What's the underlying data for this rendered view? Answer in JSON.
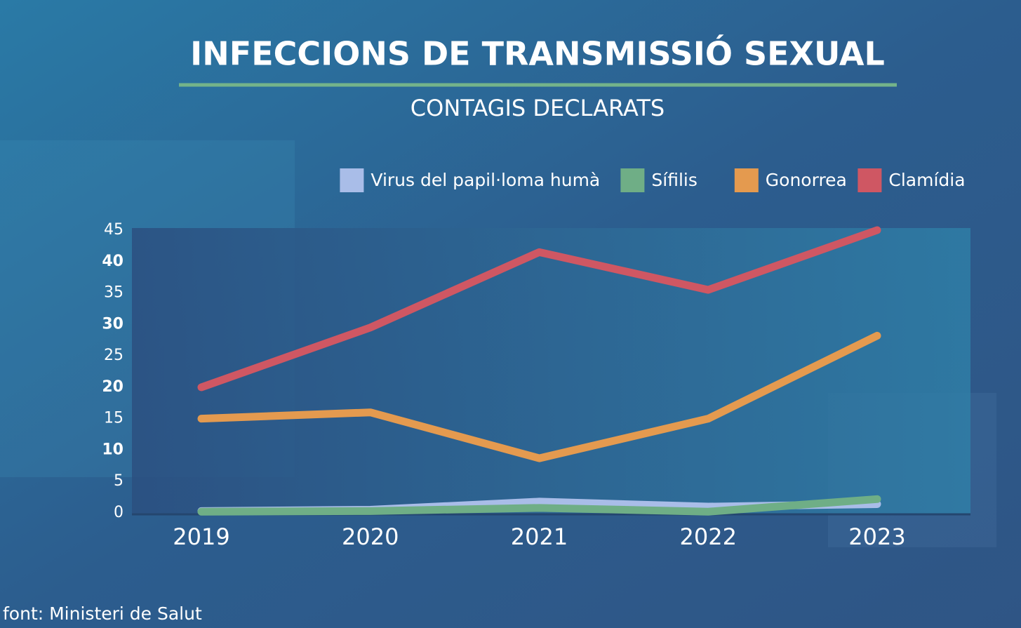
{
  "chart_data": {
    "type": "line",
    "title": "INFECCIONS DE TRANSMISSIÓ SEXUAL",
    "subtitle": "CONTAGIS DECLARATS",
    "source": "font: Ministeri de Salut",
    "categories": [
      "2019",
      "2020",
      "2021",
      "2022",
      "2023"
    ],
    "series": [
      {
        "name": "Virus del papil·loma humà",
        "color": "#a9bde8",
        "values": [
          0.3,
          0.5,
          1.8,
          1.0,
          1.4
        ]
      },
      {
        "name": "Sífilis",
        "color": "#6fae86",
        "values": [
          0.2,
          0.3,
          0.8,
          0.2,
          2.2
        ]
      },
      {
        "name": "Gonorrea",
        "color": "#e49a4f",
        "values": [
          15,
          16,
          8.7,
          15,
          28.2
        ]
      },
      {
        "name": "Clamídia",
        "color": "#cf5763",
        "values": [
          20,
          29.5,
          41.5,
          35.5,
          45
        ]
      }
    ],
    "ylim": [
      0,
      45
    ],
    "yticks": [
      0,
      5,
      10,
      15,
      20,
      25,
      30,
      35,
      40,
      45
    ],
    "legend": "top-right"
  }
}
